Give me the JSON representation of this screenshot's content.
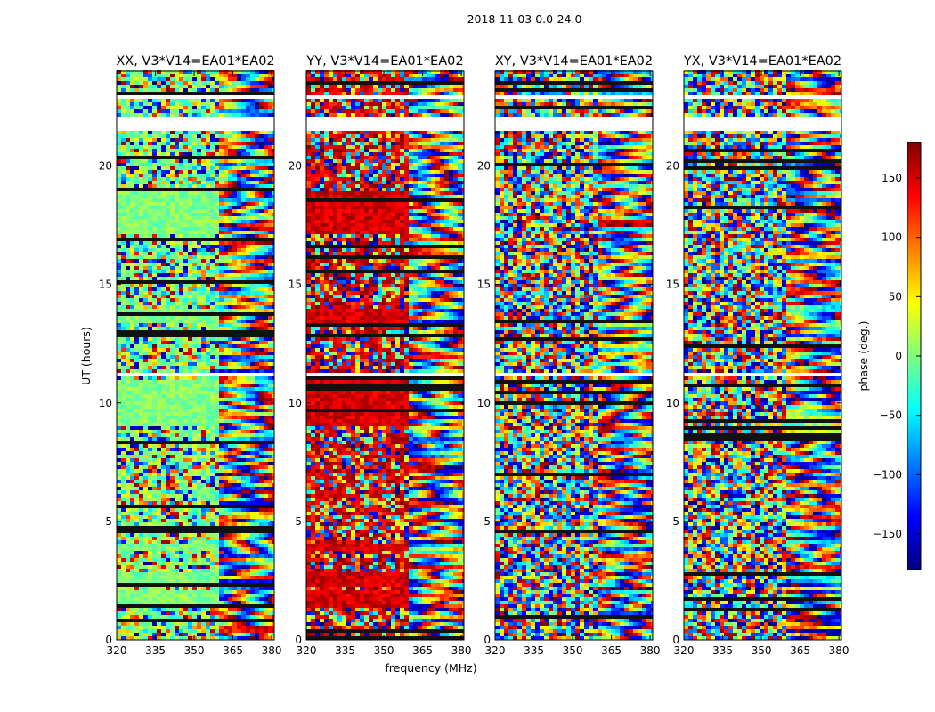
{
  "figure": {
    "suptitle": "2018-11-03 0.0-24.0",
    "ylabel": "UT (hours)",
    "xlabel": "frequency (MHz)"
  },
  "chart_data": {
    "type": "heatmap",
    "title": "2018-11-03 0.0-24.0",
    "xlabel": "frequency (MHz)",
    "ylabel": "UT (hours)",
    "xlim": [
      320,
      381
    ],
    "ylim": [
      0,
      24
    ],
    "xticks": [
      320,
      335,
      350,
      365,
      380
    ],
    "yticks": [
      0,
      5,
      10,
      15,
      20
    ],
    "panels": [
      {
        "title": "XX, V3*V14=EA01*EA02",
        "dominant_phase": 0
      },
      {
        "title": "YY, V3*V14=EA01*EA02",
        "dominant_phase": 150
      },
      {
        "title": "XY, V3*V14=EA01*EA02",
        "dominant_phase": null
      },
      {
        "title": "YX, V3*V14=EA01*EA02",
        "dominant_phase": null
      }
    ],
    "colorbar": {
      "label": "phase (deg.)",
      "range": [
        -180,
        180
      ],
      "ticks": [
        150,
        100,
        50,
        0,
        -50,
        -100,
        -150
      ],
      "tick_labels": [
        "150",
        "100",
        "50",
        "0",
        "−50",
        "−100",
        "−150"
      ],
      "colormap": [
        "#00007f",
        "#0000ff",
        "#007fff",
        "#00ffff",
        "#7fff7f",
        "#ffff00",
        "#ff7f00",
        "#ff0000",
        "#7f0000"
      ]
    },
    "blank_ut_ranges": [
      [
        21.45,
        22.1
      ],
      [
        22.8,
        23.05
      ],
      [
        14.95,
        15.08
      ],
      [
        8.95,
        9.05
      ],
      [
        1.9,
        2.0
      ],
      [
        3.55,
        3.62
      ],
      [
        6.6,
        6.68
      ],
      [
        11.15,
        11.22
      ]
    ],
    "xy_regime_ut_ranges": [
      [
        17.1,
        19.0
      ],
      [
        1.3,
        2.1
      ],
      [
        2.3,
        2.9
      ],
      [
        3.7,
        4.0
      ],
      [
        9.0,
        11.0
      ],
      [
        13.4,
        13.9
      ]
    ]
  }
}
